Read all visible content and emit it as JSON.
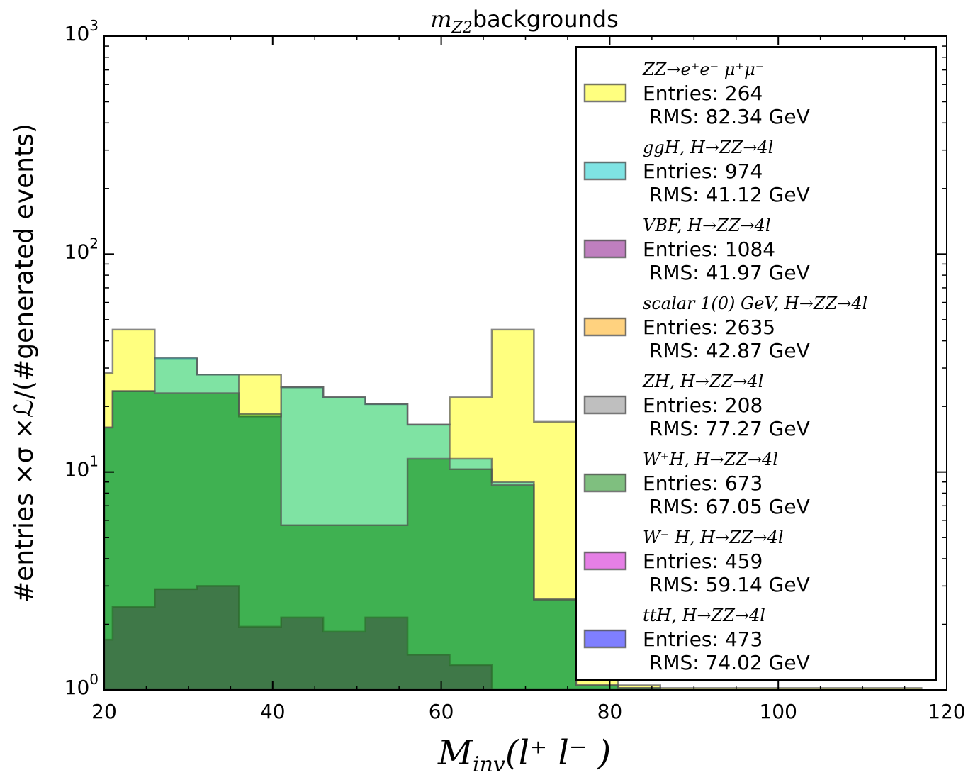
{
  "chart_data": {
    "type": "histogram",
    "title": "m_Z2 backgrounds",
    "title_math": "m",
    "title_sub": "Z2",
    "title_text": "backgrounds",
    "xlabel_main": "M",
    "xlabel_sub": "inv",
    "xlabel_rest": "(l⁺ l⁻ )",
    "ylabel": "#entries ×σ ×ℒ/(#generated events)",
    "xlim": [
      20,
      120
    ],
    "ylim": [
      1,
      1000
    ],
    "yscale": "log",
    "x_ticks": [
      "20",
      "40",
      "60",
      "80",
      "100",
      "120"
    ],
    "y_ticks": [
      {
        "base": "10",
        "exp": "0",
        "value": 1
      },
      {
        "base": "10",
        "exp": "1",
        "value": 10
      },
      {
        "base": "10",
        "exp": "2",
        "value": 100
      },
      {
        "base": "10",
        "exp": "3",
        "value": 1000
      }
    ],
    "bin_edges": [
      20,
      21,
      26,
      31,
      36,
      41,
      46,
      51,
      56,
      61,
      66,
      71,
      76,
      81,
      86,
      91,
      96,
      101,
      106,
      111,
      116,
      117
    ],
    "series": [
      {
        "name": "ZZ→e⁺e⁻ μ⁺μ⁻",
        "entries_label": "Entries: 264",
        "rms_label": " RMS: 82.34 GeV",
        "color": "#ffff00",
        "values": [
          28.5,
          45,
          33,
          28,
          28,
          24.5,
          22,
          20.5,
          16.5,
          22,
          45,
          17,
          17,
          1.05,
          1.02,
          1.02,
          1.02,
          1.02,
          1.02,
          1.02,
          1.02
        ]
      },
      {
        "name": "ggH, H→ZZ→4l",
        "entries_label": "Entries: 974",
        "rms_label": " RMS: 41.12 GeV",
        "color": "#00c8c8",
        "values": [
          16,
          23.5,
          33.5,
          28,
          18,
          24.5,
          22,
          20.5,
          16.5,
          11.5,
          9,
          2.6,
          1.05,
          1.02,
          null,
          null,
          null,
          null,
          null,
          null,
          null
        ]
      },
      {
        "name": "VBF, H→ZZ→4l",
        "entries_label": "Entries: 1084",
        "rms_label": " RMS: 41.97 GeV",
        "color": "#800080",
        "values": [
          1.7,
          2.4,
          2.9,
          3.0,
          1.95,
          2.15,
          1.85,
          2.15,
          1.45,
          1.3,
          null,
          null,
          null,
          null,
          null,
          null,
          null,
          null,
          null,
          null,
          null
        ]
      },
      {
        "name": "scalar 1(0) GeV,  H→ZZ→4l",
        "entries_label": "Entries: 2635",
        "rms_label": " RMS: 42.87 GeV",
        "color": "#ffa500",
        "values": []
      },
      {
        "name": "ZH, H→ZZ→4l",
        "entries_label": "Entries: 208",
        "rms_label": " RMS: 77.27 GeV",
        "color": "#808080",
        "values": []
      },
      {
        "name": "W⁺H, H→ZZ→4l",
        "entries_label": "Entries: 673",
        "rms_label": " RMS: 67.05 GeV",
        "color": "#008000",
        "values": [
          16,
          23.5,
          23,
          23,
          18.5,
          5.7,
          5.7,
          5.7,
          11.5,
          10.3,
          8.7,
          2.6,
          1.05,
          1.02,
          null,
          null,
          null,
          null,
          null,
          null,
          null
        ]
      },
      {
        "name": "W⁻ H, H→ZZ→4l",
        "entries_label": "Entries: 459",
        "rms_label": " RMS: 59.14 GeV",
        "color": "#cc00cc",
        "values": []
      },
      {
        "name": "ttH, H→ZZ→4l",
        "entries_label": "Entries: 473",
        "rms_label": " RMS: 74.02 GeV",
        "color": "#0000ff",
        "values": []
      }
    ],
    "legend_location": "upper right"
  }
}
